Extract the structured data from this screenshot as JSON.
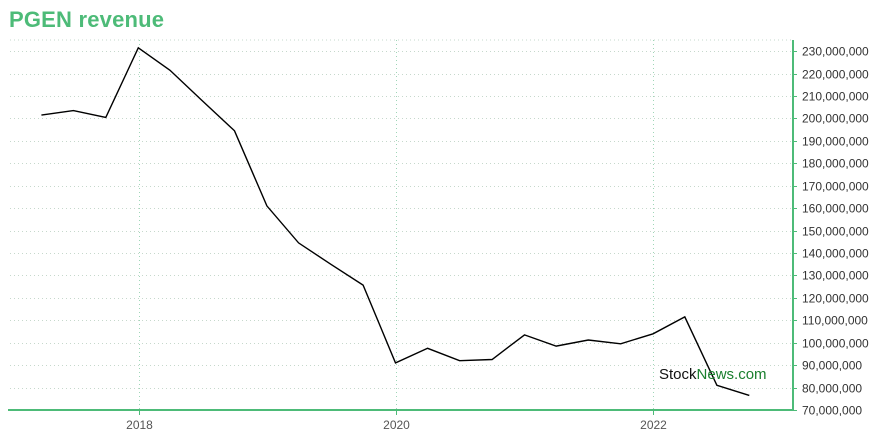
{
  "colors": {
    "title": "#4dbb78",
    "axis": "#4dbb78",
    "grid_h": "#c6d8cc",
    "grid_v": "#9fd6b8",
    "line": "#000000",
    "watermark_dark": "#111111",
    "watermark_green": "#1a7f2e"
  },
  "watermark": {
    "part1": "Stock",
    "part2": "News",
    "part3": ".com"
  },
  "chart_data": {
    "type": "line",
    "title": "PGEN revenue",
    "xlabel": "",
    "ylabel": "",
    "grid": true,
    "y_axis_side": "right",
    "ylim": [
      70000000,
      235000000
    ],
    "xlim": [
      "2017-01-01",
      "2023-02-01"
    ],
    "x_ticks": [
      "2018-01-01",
      "2020-01-01",
      "2022-01-01"
    ],
    "x_tick_labels": [
      "2018",
      "2020",
      "2022"
    ],
    "y_ticks": [
      70000000,
      80000000,
      90000000,
      100000000,
      110000000,
      120000000,
      130000000,
      140000000,
      150000000,
      160000000,
      170000000,
      180000000,
      190000000,
      200000000,
      210000000,
      220000000,
      230000000
    ],
    "y_tick_labels": [
      "70,000,000",
      "80,000,000",
      "90,000,000",
      "100,000,000",
      "110,000,000",
      "120,000,000",
      "130,000,000",
      "140,000,000",
      "150,000,000",
      "160,000,000",
      "170,000,000",
      "180,000,000",
      "190,000,000",
      "200,000,000",
      "210,000,000",
      "220,000,000",
      "230,000,000"
    ],
    "series": [
      {
        "x": [
          "2017-03-31",
          "2017-06-30",
          "2017-09-30",
          "2017-12-31",
          "2018-03-31",
          "2018-06-30",
          "2018-09-30",
          "2018-12-31",
          "2019-03-31",
          "2019-06-30",
          "2019-09-30",
          "2019-12-31",
          "2020-03-31",
          "2020-06-30",
          "2020-09-30",
          "2020-12-31",
          "2021-03-31",
          "2021-06-30",
          "2021-09-30",
          "2021-12-31",
          "2022-03-31",
          "2022-06-30",
          "2022-09-30"
        ],
        "values": [
          201500000,
          203500000,
          200500000,
          231500000,
          221500000,
          208000000,
          194500000,
          161000000,
          144500000,
          135000000,
          125700000,
          91000000,
          97500000,
          92000000,
          92500000,
          103500000,
          98500000,
          101200000,
          99500000,
          104000000,
          111500000,
          81000000,
          76500000
        ]
      }
    ]
  }
}
